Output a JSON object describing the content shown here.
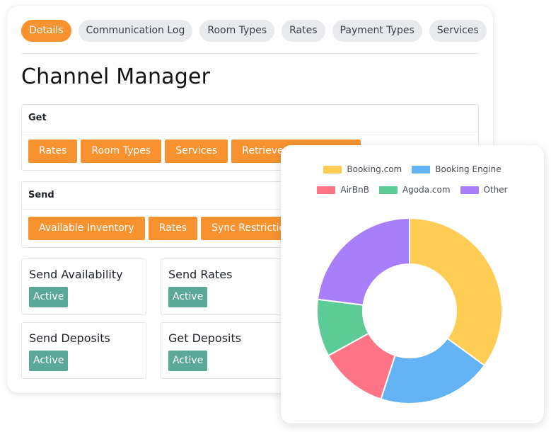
{
  "tabs": [
    {
      "label": "Details",
      "active": true
    },
    {
      "label": "Communication Log",
      "active": false
    },
    {
      "label": "Room Types",
      "active": false
    },
    {
      "label": "Rates",
      "active": false
    },
    {
      "label": "Payment Types",
      "active": false
    },
    {
      "label": "Services",
      "active": false
    }
  ],
  "page_title": "Channel Manager",
  "get_section": {
    "title": "Get",
    "buttons": [
      "Rates",
      "Room Types",
      "Services",
      "Retrieve Reservations"
    ]
  },
  "send_section": {
    "title": "Send",
    "buttons": [
      "Available Inventory",
      "Rates",
      "Sync Restrictions"
    ]
  },
  "statuses": [
    {
      "label": "Send Availability",
      "status": "Active"
    },
    {
      "label": "Send Rates",
      "status": "Active"
    },
    {
      "label": "Send Deposits",
      "status": "Active"
    },
    {
      "label": "Get Deposits",
      "status": "Active"
    }
  ],
  "colors": {
    "accent": "#f7922e",
    "badge": "#5aa897"
  },
  "chart_data": {
    "type": "pie",
    "categories": [
      "Booking.com",
      "Booking Engine",
      "AirBnB",
      "Agoda.com",
      "Other"
    ],
    "values": [
      35,
      20,
      12,
      10,
      23
    ],
    "colors": [
      "#ffcd56",
      "#63b3f5",
      "#fd7486",
      "#5ccb95",
      "#a77ffb"
    ],
    "legend": "top"
  }
}
